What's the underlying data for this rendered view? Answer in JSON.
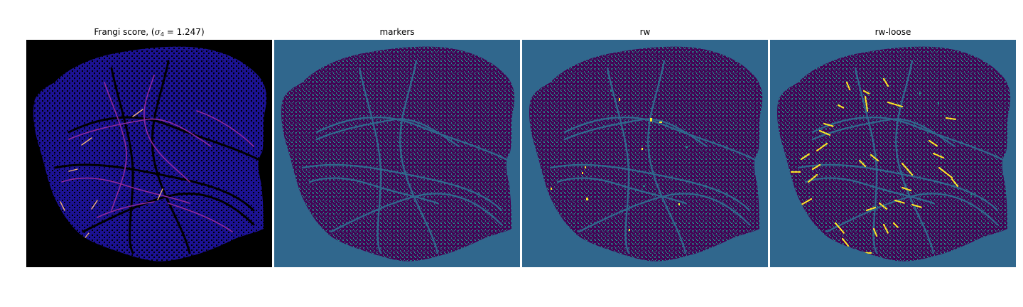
{
  "figure": {
    "panels": [
      {
        "id": "frangi",
        "title_prefix": "Frangi score, (",
        "title_sigma": "σ",
        "title_sub": "4",
        "title_eq": " = 1.247",
        "title_suffix": ")",
        "background": "#000000",
        "colormap": "magma"
      },
      {
        "id": "markers",
        "title": "markers",
        "background": "#30678d",
        "colormap": "viridis"
      },
      {
        "id": "rw",
        "title": "rw",
        "background": "#30678d",
        "colormap": "viridis"
      },
      {
        "id": "rw-loose",
        "title": "rw-loose",
        "background": "#30678d",
        "colormap": "viridis"
      }
    ],
    "colors": {
      "magma_bg": "#000000",
      "magma_low": "#1c1294",
      "magma_mid": "#8f2a9e",
      "magma_high": "#f2b27a",
      "viridis_bg": "#30678d",
      "viridis_dark": "#440154",
      "viridis_mid": "#21918c",
      "viridis_bright": "#fde725"
    }
  }
}
